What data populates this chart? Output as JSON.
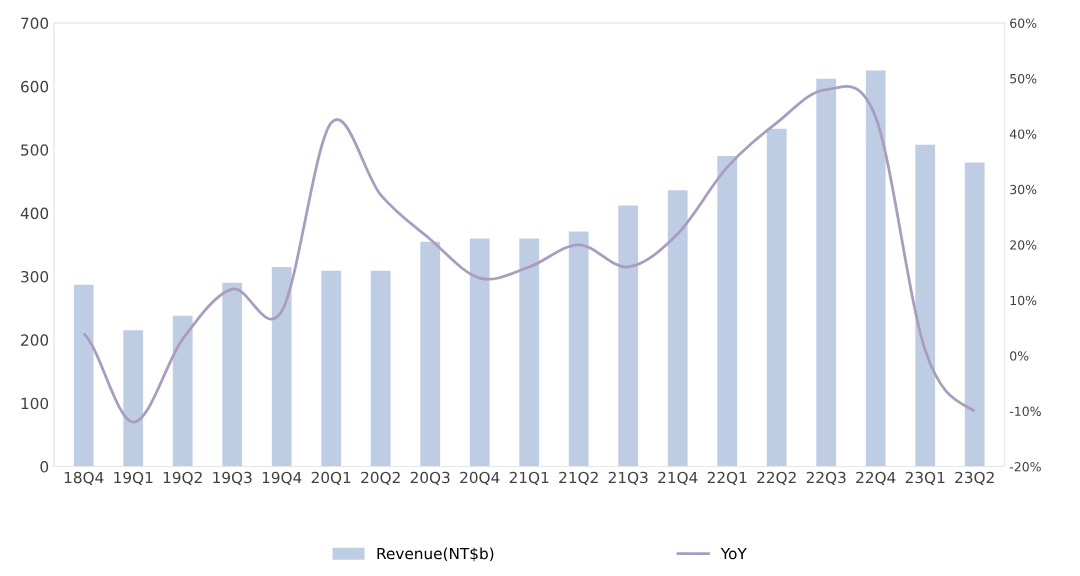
{
  "chart_data": {
    "type": "bar",
    "categories": [
      "18Q4",
      "19Q1",
      "19Q2",
      "19Q3",
      "19Q4",
      "20Q1",
      "20Q2",
      "20Q3",
      "20Q4",
      "21Q1",
      "21Q2",
      "21Q3",
      "21Q4",
      "22Q1",
      "22Q2",
      "22Q3",
      "22Q4",
      "23Q1",
      "23Q2"
    ],
    "series": [
      {
        "name": "Revenue(NT$b)",
        "color": "#bfcde4",
        "values": [
          287,
          215,
          238,
          290,
          315,
          309,
          309,
          355,
          360,
          360,
          371,
          412,
          436,
          490,
          533,
          612,
          625,
          508,
          480
        ]
      },
      {
        "name": "YoY",
        "type": "line",
        "axis": "y2",
        "color": "#a99cbf",
        "values": [
          4,
          -12,
          3,
          12,
          8,
          42,
          29,
          21,
          14,
          16,
          20,
          16,
          22,
          34,
          42,
          48,
          43,
          1,
          -10
        ]
      }
    ],
    "ylim": [
      0,
      700
    ],
    "yticks": [
      0,
      100,
      200,
      300,
      400,
      500,
      600,
      700
    ],
    "y2lim": [
      -20,
      60
    ],
    "y2ticks": [
      {
        "value": -20,
        "label": "-20%"
      },
      {
        "value": -10,
        "label": "-10%"
      },
      {
        "value": 0,
        "label": "0%"
      },
      {
        "value": 10,
        "label": "10%"
      },
      {
        "value": 20,
        "label": "20%"
      },
      {
        "value": 30,
        "label": "30%"
      },
      {
        "value": 40,
        "label": "40%"
      },
      {
        "value": 50,
        "label": "50%"
      },
      {
        "value": 60,
        "label": "60%"
      }
    ],
    "legend": "bottom",
    "grid": false,
    "marker": "none",
    "line_style": "solid"
  }
}
